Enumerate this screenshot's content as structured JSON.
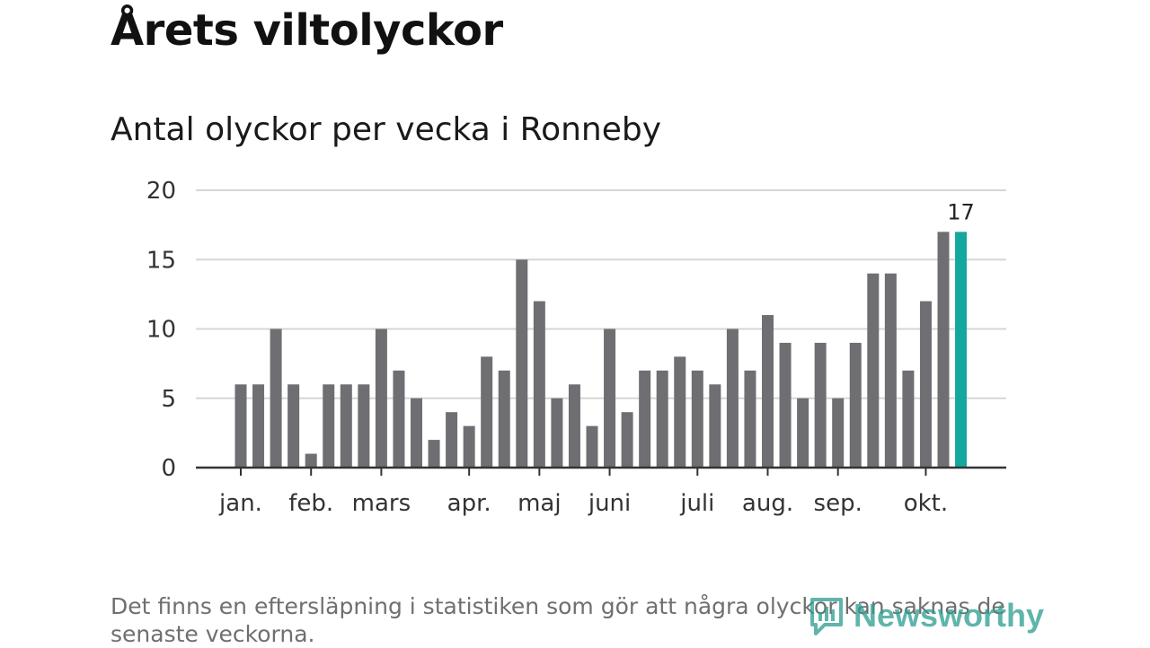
{
  "header": {
    "title": "Årets viltolyckor",
    "subtitle": "Antal olyckor per vecka i Ronneby"
  },
  "footer": {
    "note": "Det finns en eftersläpning i statistiken som gör att några olyckor kan saknas de senaste veckorna.",
    "brand": "Newsworthy",
    "brand_icon": "bar-chart-logo-icon"
  },
  "colors": {
    "bar": "#6f6e73",
    "highlight": "#13a89e",
    "grid": "#d6d6d6",
    "axis": "#333333",
    "brand": "#2a9d8f"
  },
  "chart_data": {
    "type": "bar",
    "title": "Antal olyckor per vecka i Ronneby",
    "xlabel": "",
    "ylabel": "",
    "ylim": [
      0,
      20
    ],
    "yticks": [
      0,
      5,
      10,
      15,
      20
    ],
    "grid": true,
    "values": [
      6,
      6,
      10,
      6,
      1,
      6,
      6,
      6,
      10,
      7,
      5,
      2,
      4,
      3,
      8,
      7,
      15,
      12,
      5,
      6,
      3,
      10,
      4,
      7,
      7,
      8,
      7,
      6,
      10,
      7,
      11,
      9,
      5,
      9,
      5,
      9,
      14,
      14,
      7,
      12,
      17,
      17
    ],
    "highlight_index": 41,
    "data_labels": [
      {
        "index": 41,
        "text": "17"
      }
    ],
    "month_ticks": [
      {
        "label": "jan.",
        "index": 0
      },
      {
        "label": "feb.",
        "index": 4
      },
      {
        "label": "mars",
        "index": 8
      },
      {
        "label": "apr.",
        "index": 13
      },
      {
        "label": "maj",
        "index": 17
      },
      {
        "label": "juni",
        "index": 21
      },
      {
        "label": "juli",
        "index": 26
      },
      {
        "label": "aug.",
        "index": 30
      },
      {
        "label": "sep.",
        "index": 34
      },
      {
        "label": "okt.",
        "index": 39
      }
    ]
  }
}
